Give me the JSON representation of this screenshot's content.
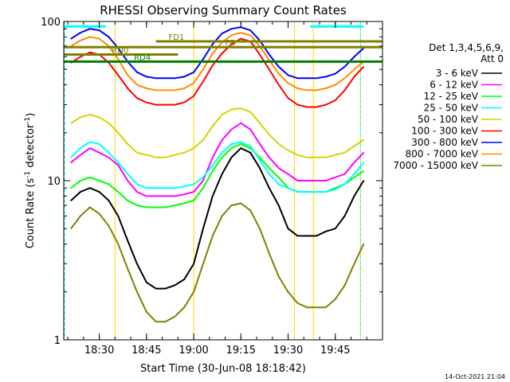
{
  "chart_data": {
    "type": "line",
    "title": "RHESSI Observing Summary Count Rates",
    "xlabel": "Start Time (30-Jun-08 18:18:42)",
    "ylabel": "Count Rate (s^-1 detector^-1)",
    "ylabel_main": "Count Rate (s",
    "ylabel_sup1": "-1",
    "ylabel_mid": " detector",
    "ylabel_sup2": "-1",
    "ylabel_end": ")",
    "y_scale": "log",
    "ylim": [
      1,
      100
    ],
    "xlim": [
      "18:18:42",
      "20:00:00"
    ],
    "x_ticks": [
      "18:30",
      "18:45",
      "19:00",
      "19:15",
      "19:30",
      "19:45"
    ],
    "y_ticks": [
      "1",
      "10",
      "100"
    ],
    "timestamp": "14-Oct-2021 21:04",
    "legend_header": [
      "Det 1,3,4,5,6,9,",
      "Att 0"
    ],
    "series": [
      {
        "name": "3 - 6 keV",
        "color": "#000000",
        "x": [
          "18:21",
          "18:24",
          "18:27",
          "18:30",
          "18:33",
          "18:36",
          "18:39",
          "18:42",
          "18:45",
          "18:48",
          "18:51",
          "18:54",
          "18:57",
          "19:00",
          "19:03",
          "19:06",
          "19:09",
          "19:12",
          "19:15",
          "19:18",
          "19:21",
          "19:24",
          "19:27",
          "19:30",
          "19:33",
          "19:36",
          "19:39",
          "19:42",
          "19:45",
          "19:48",
          "19:51",
          "19:54"
        ],
        "values": [
          7.5,
          8.5,
          9,
          8.5,
          7.5,
          6,
          4.2,
          3,
          2.3,
          2.1,
          2.1,
          2.2,
          2.4,
          3,
          5,
          8,
          11,
          14,
          16,
          15,
          12,
          9,
          7,
          5,
          4.5,
          4.5,
          4.5,
          4.8,
          5,
          6,
          8,
          10
        ]
      },
      {
        "name": "6 - 12 keV",
        "color": "#ff00ff",
        "x": [
          "18:21",
          "18:24",
          "18:27",
          "18:30",
          "18:33",
          "18:36",
          "18:39",
          "18:42",
          "18:45",
          "18:48",
          "18:51",
          "18:54",
          "18:57",
          "19:00",
          "19:03",
          "19:06",
          "19:09",
          "19:12",
          "19:15",
          "19:18",
          "19:21",
          "19:24",
          "19:27",
          "19:30",
          "19:33",
          "19:36",
          "19:39",
          "19:42",
          "19:45",
          "19:48",
          "19:51",
          "19:54"
        ],
        "values": [
          13,
          14.5,
          16,
          15,
          14,
          12.5,
          10,
          8.5,
          8,
          8,
          8,
          8,
          8.2,
          8.5,
          10,
          14,
          18,
          21,
          23,
          21,
          17,
          14,
          12,
          11,
          10,
          10,
          10,
          10,
          10.5,
          11,
          13,
          15
        ]
      },
      {
        "name": "12 - 25 keV",
        "color": "#00ff00",
        "x": [
          "18:21",
          "18:24",
          "18:27",
          "18:30",
          "18:33",
          "18:36",
          "18:39",
          "18:42",
          "18:45",
          "18:48",
          "18:51",
          "18:54",
          "18:57",
          "19:00",
          "19:03",
          "19:06",
          "19:09",
          "19:12",
          "19:15",
          "19:18",
          "19:21",
          "19:24",
          "19:27",
          "19:30",
          "19:33",
          "19:36",
          "19:39",
          "19:42",
          "19:45",
          "19:48",
          "19:51",
          "19:54"
        ],
        "values": [
          9,
          10,
          10.5,
          10,
          9.5,
          8.5,
          7.5,
          7,
          6.8,
          6.8,
          6.8,
          7,
          7.2,
          7.5,
          9,
          11.5,
          14,
          16,
          17,
          16,
          14,
          12,
          10.5,
          9,
          8.5,
          8.5,
          8.5,
          8.5,
          9,
          9.5,
          10.5,
          11.5
        ]
      },
      {
        "name": "25 - 50 keV",
        "color": "#00ffff",
        "x": [
          "18:21",
          "18:24",
          "18:27",
          "18:30",
          "18:33",
          "18:36",
          "18:39",
          "18:42",
          "18:45",
          "18:48",
          "18:51",
          "18:54",
          "18:57",
          "19:00",
          "19:03",
          "19:06",
          "19:09",
          "19:12",
          "19:15",
          "19:18",
          "19:21",
          "19:24",
          "19:27",
          "19:30",
          "19:33",
          "19:36",
          "19:39",
          "19:42",
          "19:45",
          "19:48",
          "19:51",
          "19:54"
        ],
        "values": [
          14,
          16,
          17.5,
          17,
          15,
          13,
          11,
          9.5,
          9,
          9,
          9,
          9,
          9.2,
          9.5,
          10.5,
          12.5,
          15,
          17,
          17.5,
          16.5,
          13.5,
          11,
          9.5,
          9,
          8.5,
          8.5,
          8.5,
          8.5,
          8.8,
          9.5,
          11,
          13
        ]
      },
      {
        "name": "50 - 100 keV",
        "color": "#d4d400",
        "x": [
          "18:21",
          "18:24",
          "18:27",
          "18:30",
          "18:33",
          "18:36",
          "18:39",
          "18:42",
          "18:45",
          "18:48",
          "18:51",
          "18:54",
          "18:57",
          "19:00",
          "19:03",
          "19:06",
          "19:09",
          "19:12",
          "19:15",
          "19:18",
          "19:21",
          "19:24",
          "19:27",
          "19:30",
          "19:33",
          "19:36",
          "19:39",
          "19:42",
          "19:45",
          "19:48",
          "19:51",
          "19:54"
        ],
        "values": [
          23,
          25,
          26,
          25,
          23,
          20,
          17,
          15,
          14.5,
          14,
          14,
          14.5,
          15,
          16,
          18,
          22,
          26,
          28,
          28.5,
          27,
          23,
          19.5,
          17,
          15.5,
          14.5,
          14,
          14,
          14,
          14.5,
          15,
          16.5,
          18
        ]
      },
      {
        "name": "100 - 300 keV",
        "color": "#ff0000",
        "x": [
          "18:21",
          "18:24",
          "18:27",
          "18:30",
          "18:33",
          "18:36",
          "18:39",
          "18:42",
          "18:45",
          "18:48",
          "18:51",
          "18:54",
          "18:57",
          "19:00",
          "19:03",
          "19:06",
          "19:09",
          "19:12",
          "19:15",
          "19:18",
          "19:21",
          "19:24",
          "19:27",
          "19:30",
          "19:33",
          "19:36",
          "19:39",
          "19:42",
          "19:45",
          "19:48",
          "19:51",
          "19:54"
        ],
        "values": [
          55,
          60,
          64,
          62,
          55,
          46,
          38,
          33,
          31,
          30,
          30,
          30,
          31,
          34,
          42,
          53,
          63,
          72,
          78,
          75,
          62,
          50,
          40,
          33,
          30,
          29,
          29,
          30,
          32,
          37,
          45,
          52
        ]
      },
      {
        "name": "300 - 800 keV",
        "color": "#0000ff",
        "x": [
          "18:21",
          "18:24",
          "18:27",
          "18:30",
          "18:33",
          "18:36",
          "18:39",
          "18:42",
          "18:45",
          "18:48",
          "18:51",
          "18:54",
          "18:57",
          "19:00",
          "19:03",
          "19:06",
          "19:09",
          "19:12",
          "19:15",
          "19:18",
          "19:21",
          "19:24",
          "19:27",
          "19:30",
          "19:33",
          "19:36",
          "19:39",
          "19:42",
          "19:45",
          "19:48",
          "19:51",
          "19:54"
        ],
        "values": [
          78,
          85,
          90,
          88,
          80,
          68,
          56,
          48,
          45,
          44,
          44,
          44,
          45,
          48,
          58,
          72,
          84,
          90,
          92,
          88,
          76,
          62,
          52,
          46,
          44,
          44,
          44,
          45,
          47,
          52,
          60,
          68
        ]
      },
      {
        "name": "800 - 7000 keV",
        "color": "#ff8c00",
        "x": [
          "18:21",
          "18:24",
          "18:27",
          "18:30",
          "18:33",
          "18:36",
          "18:39",
          "18:42",
          "18:45",
          "18:48",
          "18:51",
          "18:54",
          "18:57",
          "19:00",
          "19:03",
          "19:06",
          "19:09",
          "19:12",
          "19:15",
          "19:18",
          "19:21",
          "19:24",
          "19:27",
          "19:30",
          "19:33",
          "19:36",
          "19:39",
          "19:42",
          "19:45",
          "19:48",
          "19:51",
          "19:54"
        ],
        "values": [
          70,
          76,
          80,
          78,
          70,
          58,
          46,
          40,
          38,
          37,
          37,
          37,
          38,
          41,
          50,
          63,
          74,
          82,
          85,
          82,
          70,
          57,
          47,
          41,
          38,
          37,
          37,
          38,
          40,
          44,
          50,
          56
        ]
      },
      {
        "name": "7000 - 15000 keV",
        "color": "#808000",
        "x": [
          "18:21",
          "18:24",
          "18:27",
          "18:30",
          "18:33",
          "18:36",
          "18:39",
          "18:42",
          "18:45",
          "18:48",
          "18:51",
          "18:54",
          "18:57",
          "19:00",
          "19:03",
          "19:06",
          "19:09",
          "19:12",
          "19:15",
          "19:18",
          "19:21",
          "19:24",
          "19:27",
          "19:30",
          "19:33",
          "19:36",
          "19:39",
          "19:42",
          "19:45",
          "19:48",
          "19:51",
          "19:54"
        ],
        "values": [
          5,
          6,
          6.8,
          6.2,
          5.2,
          4,
          2.8,
          2,
          1.5,
          1.3,
          1.3,
          1.4,
          1.6,
          2,
          3,
          4.5,
          6,
          7,
          7.2,
          6.5,
          5,
          3.5,
          2.5,
          2,
          1.7,
          1.6,
          1.6,
          1.6,
          1.8,
          2.2,
          3,
          4
        ]
      }
    ],
    "flag_bars": [
      {
        "label": "FD1",
        "color": "#808000",
        "level": 75,
        "start": "18:48",
        "end": "20:00"
      },
      {
        "label": "FD",
        "color": "#808000",
        "level": 69,
        "start": "18:18:42",
        "end": "20:00"
      },
      {
        "label": "RD0",
        "color": "#808000",
        "level": 62,
        "start": "18:18:42",
        "end": "18:55"
      },
      {
        "label": "RD4",
        "color": "#008000",
        "level": 56,
        "start": "18:18:42",
        "end": "20:00"
      }
    ],
    "vertical_markers": [
      "18:35",
      "19:00",
      "19:32",
      "19:38",
      "19:53"
    ],
    "saa_bars": [
      {
        "start": "18:18:42",
        "end": "18:32",
        "level": 93
      },
      {
        "start": "19:37",
        "end": "19:54",
        "level": 93
      }
    ]
  }
}
